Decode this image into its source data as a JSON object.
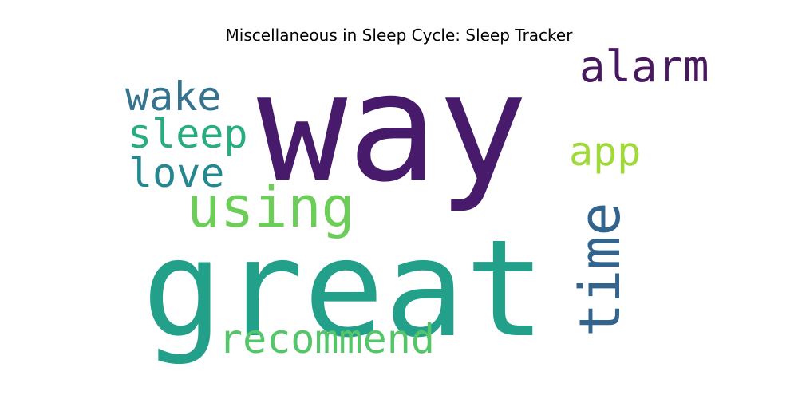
{
  "chart_data": {
    "type": "wordcloud",
    "title": "Miscellaneous in Sleep Cycle: Sleep Tracker",
    "words": [
      {
        "text": "way",
        "weight": 1.0,
        "color": "#471a6b",
        "rotated": false
      },
      {
        "text": "great",
        "weight": 0.9,
        "color": "#23a089",
        "rotated": false
      },
      {
        "text": "alarm",
        "weight": 0.35,
        "color": "#48195f",
        "rotated": false
      },
      {
        "text": "using",
        "weight": 0.45,
        "color": "#6cce59",
        "rotated": false
      },
      {
        "text": "time",
        "weight": 0.45,
        "color": "#33648d",
        "rotated": true
      },
      {
        "text": "recommend",
        "weight": 0.35,
        "color": "#54c568",
        "rotated": false
      },
      {
        "text": "wake",
        "weight": 0.3,
        "color": "#35738e",
        "rotated": false
      },
      {
        "text": "sleep",
        "weight": 0.3,
        "color": "#27ad81",
        "rotated": false
      },
      {
        "text": "love",
        "weight": 0.3,
        "color": "#24868e",
        "rotated": false
      },
      {
        "text": "app",
        "weight": 0.3,
        "color": "#a0da39",
        "rotated": false
      }
    ]
  }
}
